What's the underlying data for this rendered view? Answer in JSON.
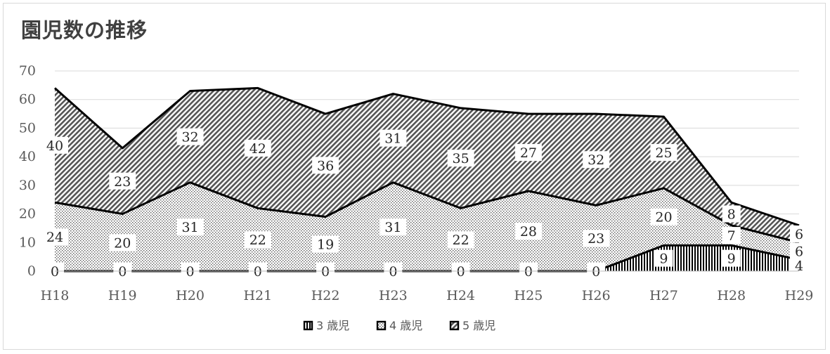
{
  "chart_data": {
    "type": "area",
    "stacked": true,
    "title": "園児数の推移",
    "categories": [
      "H18",
      "H19",
      "H20",
      "H21",
      "H22",
      "H23",
      "H24",
      "H25",
      "H26",
      "H27",
      "H28",
      "H29"
    ],
    "series": [
      {
        "name": "3 歳児",
        "pattern": "vertical-stripes",
        "values": [
          0,
          0,
          0,
          0,
          0,
          0,
          0,
          0,
          0,
          9,
          9,
          4
        ]
      },
      {
        "name": "4 歳児",
        "pattern": "dots",
        "values": [
          24,
          20,
          31,
          22,
          19,
          31,
          22,
          28,
          23,
          20,
          7,
          6
        ]
      },
      {
        "name": "5 歳児",
        "pattern": "diagonal-hatch",
        "values": [
          40,
          23,
          32,
          42,
          36,
          31,
          35,
          27,
          32,
          25,
          8,
          6
        ]
      }
    ],
    "ylim": [
      0,
      70
    ],
    "yticks": [
      "0",
      "10",
      "20",
      "30",
      "40",
      "50",
      "60",
      "70"
    ],
    "grid": true,
    "legend_position": "bottom",
    "line_color": "#000000",
    "gridline_color": "#d9d9d9"
  }
}
